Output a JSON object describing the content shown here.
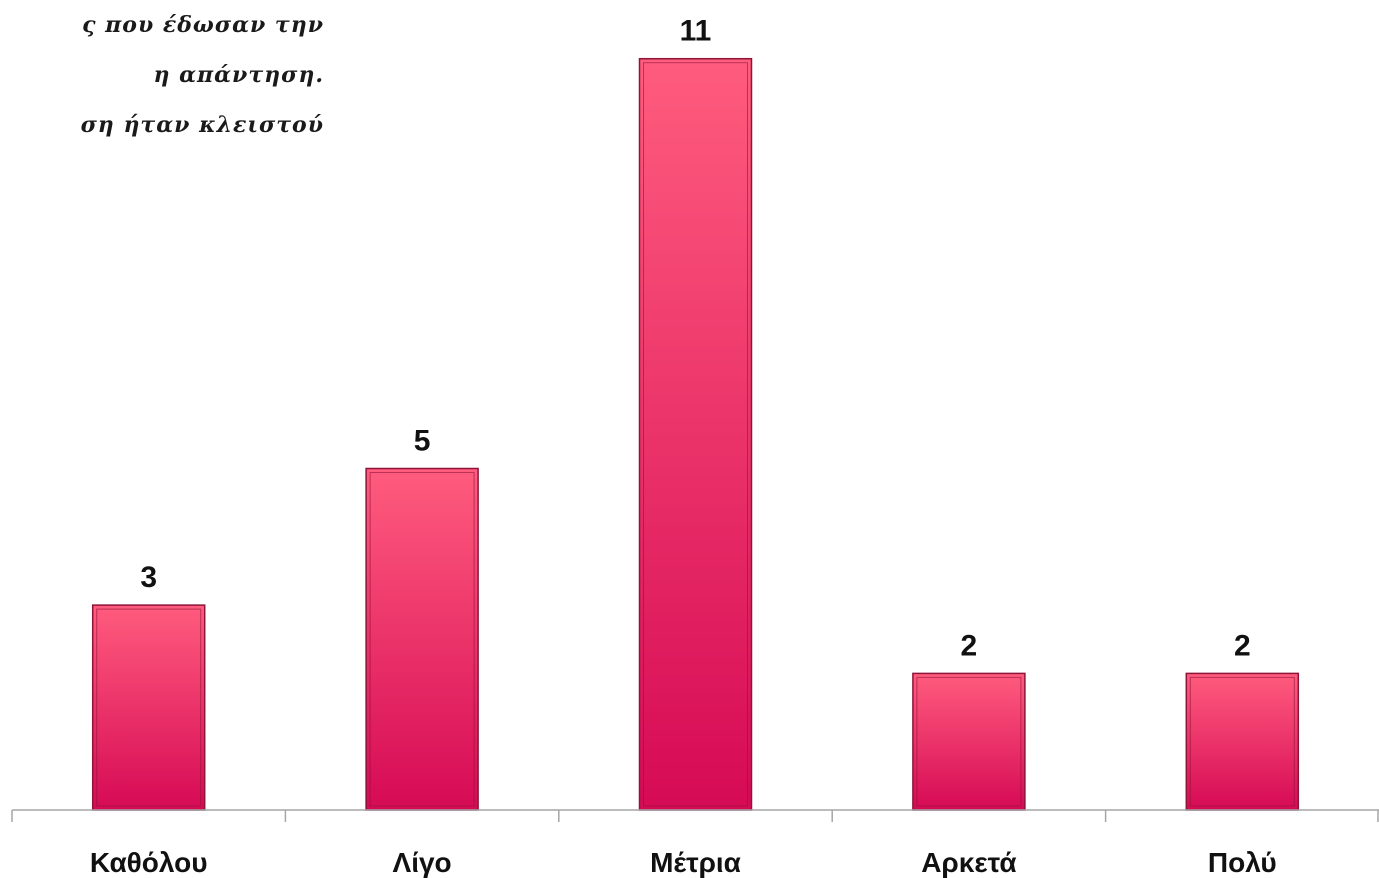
{
  "note": {
    "lines": [
      "ς που έδωσαν την",
      "η απάντηση.",
      "ση ήταν κλειστού"
    ]
  },
  "colors": {
    "bar_top": "#ff5c7e",
    "bar_bottom": "#d60a55",
    "bar_border": "#8e1438",
    "axis": "#a6a6a6"
  },
  "chart_data": {
    "type": "bar",
    "categories": [
      "Καθόλου",
      "Λίγο",
      "Μέτρια",
      "Αρκετά",
      "Πολύ"
    ],
    "values": [
      3,
      5,
      11,
      2,
      2
    ],
    "title": "",
    "xlabel": "",
    "ylabel": "",
    "ylim": [
      0,
      12
    ],
    "grid": false,
    "data_labels": true
  }
}
